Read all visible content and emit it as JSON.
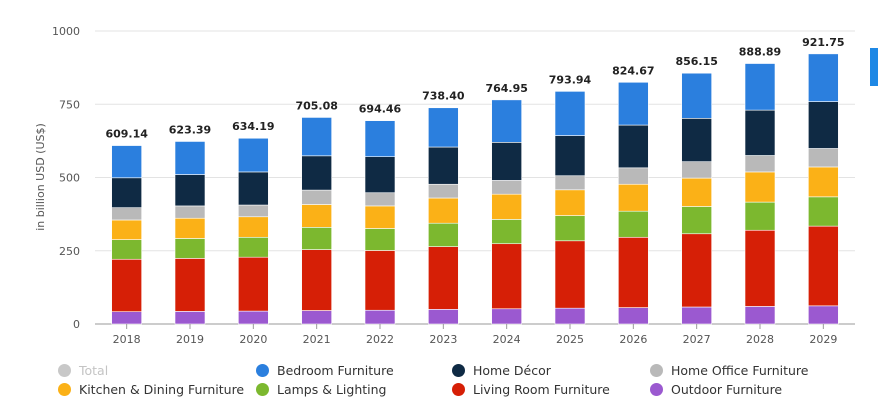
{
  "chart_data": {
    "type": "bar",
    "stacked": true,
    "ylabel": "in billion USD (US$)",
    "xlabel": "",
    "ylim": [
      0,
      1000
    ],
    "y_ticks": [
      "0",
      "250",
      "500",
      "750",
      "1000"
    ],
    "grid": true,
    "legend_position": "bottom",
    "categories": [
      "2018",
      "2019",
      "2020",
      "2021",
      "2022",
      "2023",
      "2024",
      "2025",
      "2026",
      "2027",
      "2028",
      "2029"
    ],
    "totals": [
      "609.14",
      "623.39",
      "634.19",
      "705.08",
      "694.46",
      "738.40",
      "764.95",
      "793.94",
      "824.67",
      "856.15",
      "888.89",
      "921.75"
    ],
    "series": [
      {
        "name": "Outdoor Furniture",
        "color": "#9b59d0",
        "values": [
          42,
          43,
          44,
          46,
          47,
          50,
          52,
          54,
          56,
          58,
          60,
          62
        ]
      },
      {
        "name": "Living Room Furniture",
        "color": "#d61f06",
        "values": [
          179,
          181,
          184,
          208,
          204,
          214,
          222,
          230,
          240,
          250,
          260,
          272
        ]
      },
      {
        "name": "Lamps & Lighting",
        "color": "#7cb82f",
        "values": [
          67,
          68,
          68,
          76,
          75,
          80,
          83,
          86,
          89,
          93,
          96,
          100
        ]
      },
      {
        "name": "Kitchen & Dining Furniture",
        "color": "#fbb117",
        "values": [
          67,
          69,
          70,
          78,
          77,
          86,
          86,
          88,
          92,
          97,
          103,
          102
        ]
      },
      {
        "name": "Home Office Furniture",
        "color": "#b9b9b9",
        "values": [
          42,
          42,
          40,
          49,
          45,
          47,
          47,
          48,
          56,
          56,
          56,
          63
        ]
      },
      {
        "name": "Home Décor",
        "color": "#0f2a44",
        "values": [
          102,
          107,
          113,
          117,
          123,
          127,
          130,
          137,
          146,
          148,
          155,
          160
        ]
      },
      {
        "name": "Bedroom Furniture",
        "color": "#2b7fde",
        "values": [
          110,
          113,
          115,
          131,
          123,
          134,
          145,
          151,
          146,
          154,
          159,
          163
        ]
      }
    ]
  },
  "legend": [
    {
      "label": "Total",
      "color": "#c8c8c8",
      "muted": true
    },
    {
      "label": "Bedroom Furniture",
      "color": "#2b7fde",
      "muted": false
    },
    {
      "label": "Home Décor",
      "color": "#0f2a44",
      "muted": false
    },
    {
      "label": "Home Office Furniture",
      "color": "#b9b9b9",
      "muted": false
    },
    {
      "label": "Kitchen & Dining Furniture",
      "color": "#fbb117",
      "muted": false
    },
    {
      "label": "Lamps & Lighting",
      "color": "#7cb82f",
      "muted": false
    },
    {
      "label": "Living Room Furniture",
      "color": "#d61f06",
      "muted": false
    },
    {
      "label": "Outdoor Furniture",
      "color": "#9b59d0",
      "muted": false
    }
  ]
}
